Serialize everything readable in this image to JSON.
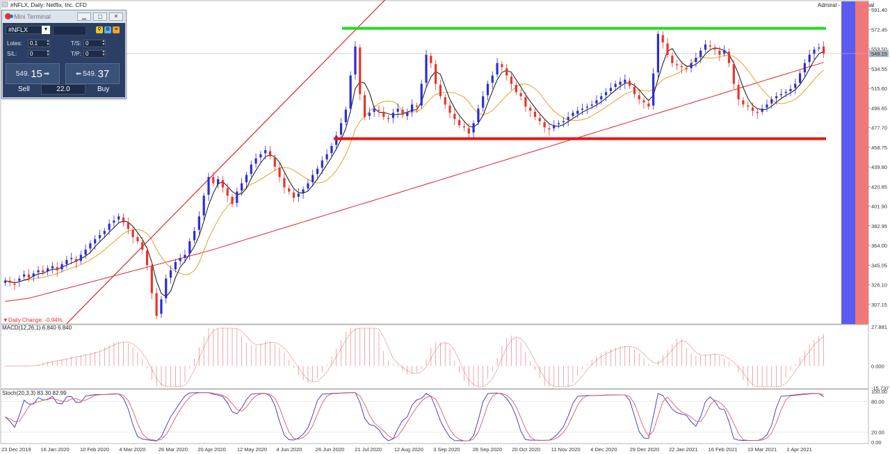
{
  "window": {
    "title": "#NFLX, Daily:  Netflix, Inc. CFD",
    "corner_label": "Admiral - Mini Terminal"
  },
  "daily_change": "Daily Change: -0.94%",
  "mini_terminal": {
    "title": "Mini Terminal",
    "symbol": "#NFLX",
    "lots_label": "Lotes:",
    "lots_value": "0.1",
    "sl_label": "S/L:",
    "sl_value": "0",
    "ts_label": "T/S:",
    "ts_value": "0",
    "tp_label": "T/P:",
    "tp_value": "0",
    "sell_small": "549.",
    "sell_big": "15",
    "buy_small": "549.",
    "buy_big": "37",
    "sell_label": "Sell",
    "buy_label": "Buy",
    "volume": "22.0"
  },
  "colors": {
    "bull": "#2b2bd6",
    "bear": "#e8332a",
    "resistance": "#22dd22",
    "support": "#ee1111",
    "sma_fast": "#111111",
    "sma_slow": "#e8a020",
    "sma_long": "#dd2222",
    "macd": "#e05a5a",
    "stoch_main": "#3030cc",
    "stoch_signal": "#e05a5a",
    "blue_band": "#5b5bf0",
    "red_band": "#f07878"
  },
  "chart_data": [
    {
      "type": "candlestick",
      "symbol": "#NFLX",
      "x_ticks": [
        "23 Dec 2019",
        "16 Jan 2020",
        "10 Feb 2020",
        "4 Mar 2020",
        "26 Mar 2020",
        "20 Apr 2020",
        "12 May 2020",
        "4 Jun 2020",
        "26 Jun 2020",
        "21 Jul 2020",
        "12 Aug 2020",
        "3 Sep 2020",
        "28 Sep 2020",
        "20 Oct 2020",
        "11 Nov 2020",
        "4 Dec 2020",
        "29 Dec 2020",
        "22 Jan 2021",
        "16 Feb 2021",
        "10 Mar 2021",
        "1 Apr 2021"
      ],
      "y_ticks": [
        "591.40",
        "572.45",
        "553.50",
        "534.55",
        "515.60",
        "496.65",
        "477.70",
        "458.75",
        "439.80",
        "420.85",
        "401.90",
        "382.95",
        "364.00",
        "345.05",
        "326.10",
        "307.15"
      ],
      "ylim": [
        288.2,
        595.5
      ],
      "current_price_label": "549.15",
      "current_price": 549.15,
      "levels": {
        "resistance": 573.5,
        "support": 467.0
      },
      "trendline": {
        "from": [
          13,
          288.5
        ],
        "to": [
          65,
          530
        ]
      },
      "moving_averages": [
        "fast",
        "slow",
        "long"
      ],
      "close": [
        330,
        328,
        326,
        332,
        336,
        333,
        337,
        340,
        338,
        342,
        344,
        340,
        346,
        350,
        352,
        348,
        355,
        360,
        366,
        370,
        374,
        378,
        385,
        388,
        392,
        386,
        380,
        372,
        368,
        360,
        345,
        318,
        296,
        312,
        332,
        340,
        348,
        352,
        355,
        368,
        378,
        392,
        412,
        430,
        424,
        428,
        420,
        412,
        404,
        416,
        424,
        432,
        442,
        448,
        452,
        456,
        450,
        440,
        430,
        420,
        416,
        410,
        414,
        418,
        424,
        432,
        438,
        446,
        452,
        460,
        470,
        482,
        495,
        528,
        556,
        510,
        488,
        492,
        496,
        494,
        488,
        486,
        492,
        496,
        490,
        492,
        500,
        498,
        520,
        548,
        540,
        520,
        508,
        500,
        492,
        486,
        480,
        478,
        472,
        482,
        496,
        508,
        520,
        528,
        540,
        536,
        528,
        520,
        512,
        508,
        498,
        494,
        488,
        484,
        478,
        476,
        480,
        482,
        484,
        488,
        492,
        494,
        496,
        498,
        500,
        504,
        508,
        512,
        516,
        520,
        522,
        524,
        518,
        510,
        505,
        502,
        498,
        530,
        568,
        560,
        548,
        540,
        538,
        536,
        534,
        540,
        545,
        552,
        558,
        556,
        553,
        548,
        552,
        540,
        520,
        505,
        500,
        498,
        494,
        492,
        496,
        500,
        505,
        508,
        510,
        512,
        515,
        520,
        530,
        540,
        548,
        553,
        555,
        549
      ],
      "open": [
        328,
        330,
        327,
        330,
        334,
        336,
        334,
        338,
        340,
        339,
        342,
        343,
        341,
        346,
        351,
        351,
        349,
        355,
        361,
        366,
        371,
        375,
        379,
        386,
        389,
        391,
        386,
        379,
        372,
        367,
        359,
        344,
        318,
        298,
        313,
        333,
        341,
        349,
        352,
        356,
        369,
        379,
        393,
        413,
        430,
        423,
        427,
        419,
        411,
        405,
        417,
        425,
        433,
        443,
        449,
        453,
        455,
        449,
        439,
        429,
        419,
        415,
        411,
        415,
        419,
        425,
        433,
        439,
        447,
        453,
        461,
        471,
        483,
        496,
        529,
        555,
        509,
        489,
        493,
        495,
        493,
        487,
        487,
        493,
        495,
        489,
        493,
        499,
        499,
        521,
        547,
        539,
        519,
        507,
        499,
        491,
        485,
        479,
        477,
        473,
        483,
        497,
        509,
        521,
        529,
        539,
        535,
        527,
        519,
        511,
        507,
        497,
        493,
        487,
        483,
        477,
        477,
        481,
        483,
        485,
        489,
        491,
        495,
        497,
        499,
        501,
        505,
        509,
        513,
        517,
        519,
        521,
        523,
        517,
        509,
        504,
        501,
        499,
        531,
        567,
        559,
        547,
        539,
        537,
        535,
        535,
        541,
        546,
        553,
        557,
        555,
        552,
        549,
        551,
        539,
        519,
        504,
        499,
        497,
        493,
        493,
        497,
        501,
        506,
        509,
        511,
        513,
        516,
        521,
        531,
        541,
        549,
        554,
        556
      ],
      "macd": {
        "label": "MACD(12,26,1) 6.840 6.840",
        "ylim": [
          -15.737,
          27.881
        ],
        "ticks": [
          "27.881",
          "0.000",
          "-15.737"
        ]
      },
      "stoch": {
        "label": "Stoch(20,3,3) 83.30 82.99",
        "ylim": [
          0,
          100
        ],
        "ticks": [
          "100.00",
          "80.00",
          "20.00",
          "0.00"
        ]
      }
    }
  ]
}
